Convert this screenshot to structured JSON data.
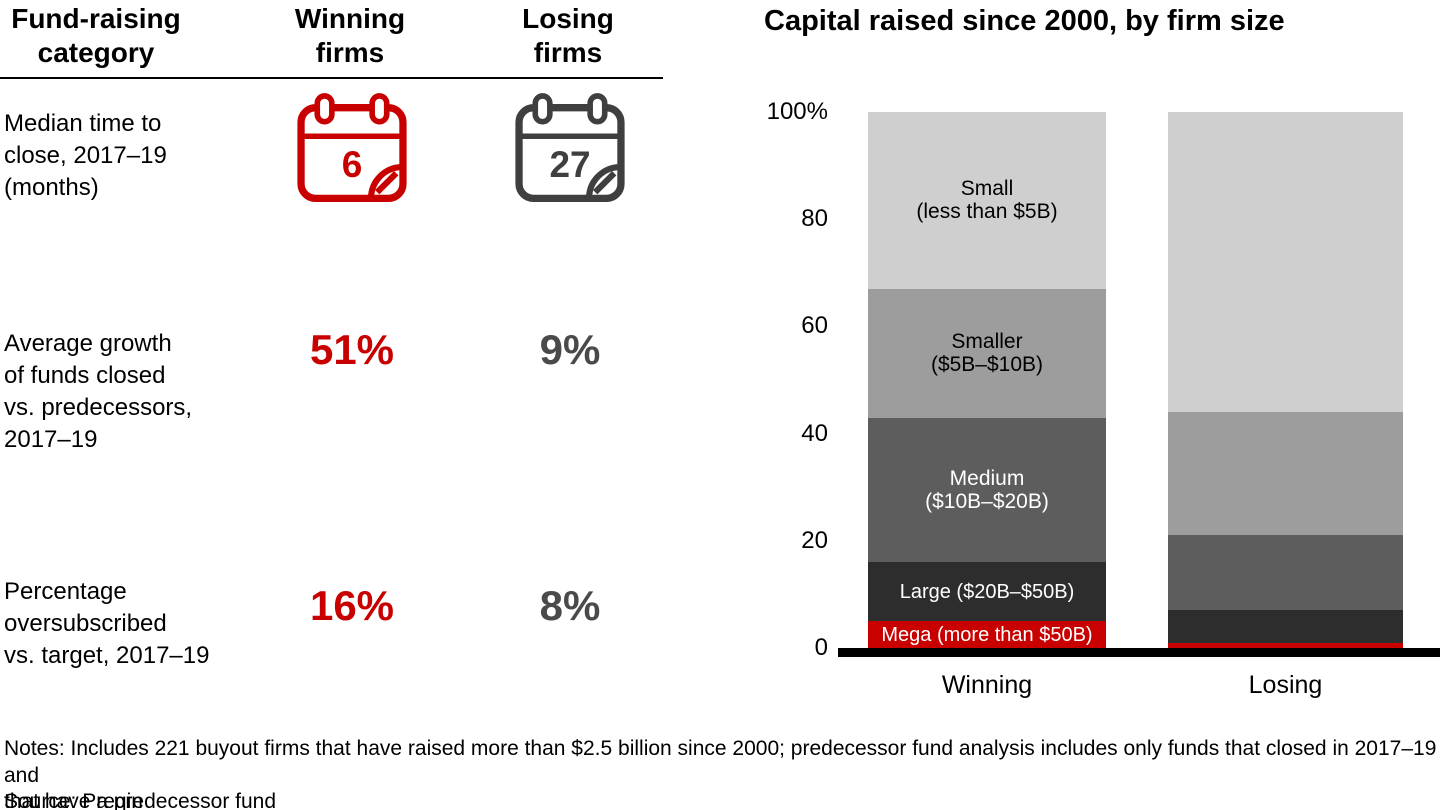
{
  "colors": {
    "red": "#c90000",
    "calendar_gray": "#3f3f3f",
    "value_gray": "#4a4a4a",
    "black": "#000000"
  },
  "table": {
    "headers": {
      "category": [
        "Fund-raising",
        "category"
      ],
      "winning": [
        "Winning",
        "firms"
      ],
      "losing": [
        "Losing",
        "firms"
      ]
    },
    "rows": [
      {
        "label_lines": [
          "Median time to",
          "close, 2017–19",
          "(months)"
        ],
        "type": "calendar",
        "winning": "6",
        "losing": "27"
      },
      {
        "label_lines": [
          "Average growth",
          "of funds closed",
          "vs. predecessors,",
          "2017–19"
        ],
        "type": "percent",
        "winning": "51%",
        "losing": "9%"
      },
      {
        "label_lines": [
          "Percentage",
          "oversubscribed",
          "vs. target, 2017–19"
        ],
        "type": "percent",
        "winning": "16%",
        "losing": "8%"
      }
    ]
  },
  "chart_data": {
    "type": "bar",
    "stacked": true,
    "title": "Capital raised since 2000, by firm size",
    "categories": [
      "Winning",
      "Losing"
    ],
    "series": [
      {
        "name": "Small (less than $5B)",
        "label_lines": [
          "Small",
          "(less than $5B)"
        ],
        "color": "#cfcfcf",
        "label_color": "#000000",
        "values": [
          33,
          56
        ]
      },
      {
        "name": "Smaller ($5B–$10B)",
        "label_lines": [
          "Smaller",
          "($5B–$10B)"
        ],
        "color": "#9d9d9d",
        "label_color": "#000000",
        "values": [
          24,
          23
        ]
      },
      {
        "name": "Medium ($10B–$20B)",
        "label_lines": [
          "Medium",
          "($10B–$20B)"
        ],
        "color": "#5d5d5d",
        "label_color": "#ffffff",
        "values": [
          27,
          14
        ]
      },
      {
        "name": "Large ($20B–$50B)",
        "label_lines": [
          "Large ($20B–$50B)"
        ],
        "color": "#2d2d2d",
        "label_color": "#ffffff",
        "values": [
          11,
          6
        ]
      },
      {
        "name": "Mega (more than $50B)",
        "label_lines": [
          "Mega (more than $50B)"
        ],
        "color": "#c90000",
        "label_color": "#ffffff",
        "values": [
          5,
          1
        ]
      }
    ],
    "y_ticks": [
      {
        "label": "100%",
        "value": 100
      },
      {
        "label": "80",
        "value": 80
      },
      {
        "label": "60",
        "value": 60
      },
      {
        "label": "40",
        "value": 40
      },
      {
        "label": "20",
        "value": 20
      },
      {
        "label": "0",
        "value": 0
      }
    ],
    "ylim": [
      0,
      100
    ],
    "grid": false,
    "legend": "labels-inside-first-bar"
  },
  "notes": {
    "note_lines": [
      "Notes: Includes 221 buyout firms that have raised more than $2.5 billion since 2000; predecessor fund analysis includes only funds that closed in 2017–19 and",
      "that have a predecessor fund"
    ],
    "source": "Source: Preqin"
  }
}
